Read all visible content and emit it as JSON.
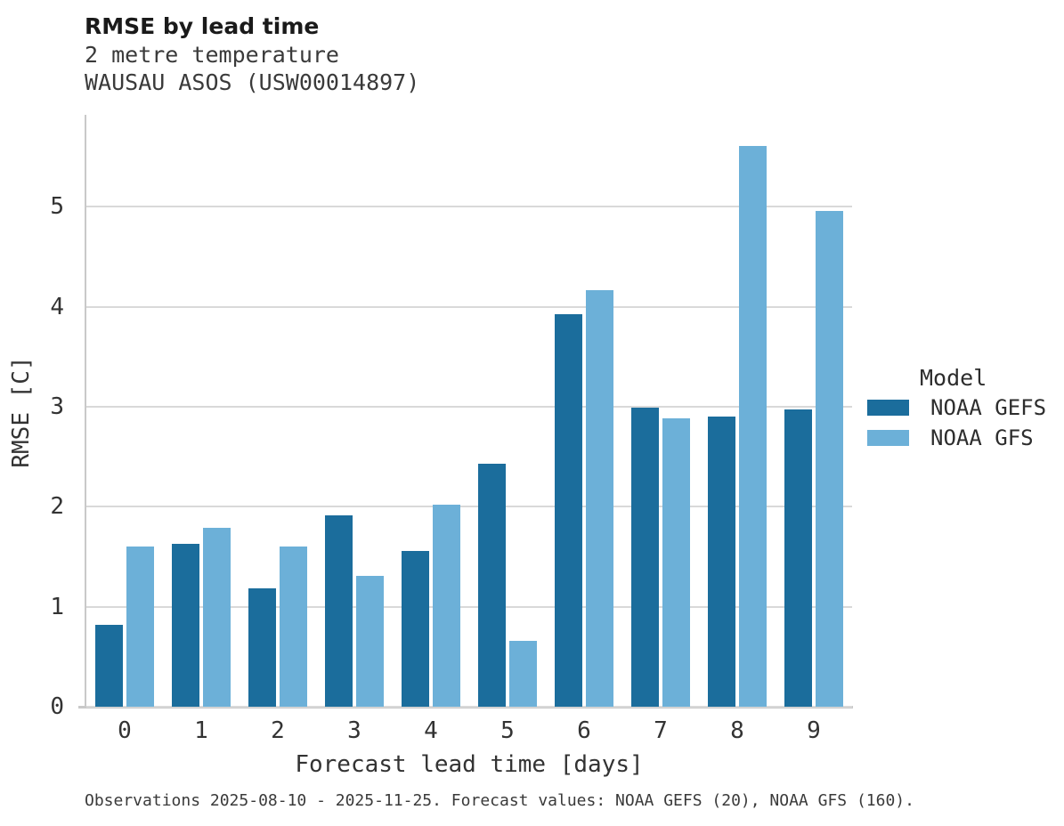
{
  "header": {
    "title": "RMSE by lead time",
    "subtitle_line1": "2 metre temperature",
    "subtitle_line2": "WAUSAU ASOS (USW00014897)"
  },
  "caption": "Observations 2025-08-10 - 2025-11-25. Forecast values: NOAA GEFS (20), NOAA GFS (160).",
  "legend": {
    "title": "Model",
    "entries": [
      {
        "label": "NOAA GEFS",
        "color": "#1b6d9c"
      },
      {
        "label": "NOAA GFS",
        "color": "#6cb0d8"
      }
    ]
  },
  "colors": {
    "gefs_bar": "#1b6d9c",
    "gfs_bar": "#6cb0d8",
    "gridline": "#d9d9d9",
    "spine": "#c9c9c9",
    "title_text": "#1a1a1a",
    "body_text": "#333333"
  },
  "chart_data": {
    "type": "bar",
    "title": "RMSE by lead time",
    "subtitle": "2 metre temperature",
    "station": "WAUSAU ASOS (USW00014897)",
    "categories": [
      "0",
      "1",
      "2",
      "3",
      "4",
      "5",
      "6",
      "7",
      "8",
      "9"
    ],
    "series": [
      {
        "name": "NOAA GEFS",
        "color": "#1b6d9c",
        "values": [
          0.82,
          1.63,
          1.18,
          1.91,
          1.56,
          2.43,
          3.93,
          2.99,
          2.9,
          2.97
        ]
      },
      {
        "name": "NOAA GFS",
        "color": "#6cb0d8",
        "values": [
          1.6,
          1.79,
          1.6,
          1.31,
          2.02,
          0.66,
          4.17,
          2.88,
          5.61,
          4.96
        ]
      }
    ],
    "xlabel": "Forecast lead time [days]",
    "ylabel": "RMSE [C]",
    "ylim": [
      0,
      5.91
    ],
    "yticks": [
      0,
      1,
      2,
      3,
      4,
      5
    ],
    "grid": true,
    "legend_position": "right",
    "legend_title": "Model"
  }
}
